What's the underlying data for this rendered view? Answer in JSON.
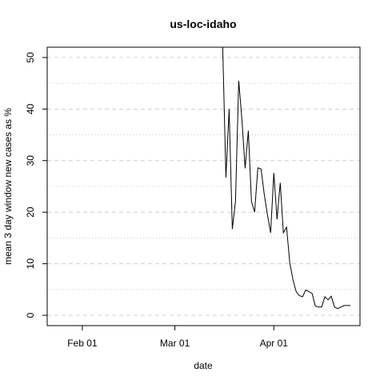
{
  "chart_data": {
    "type": "line",
    "title": "us-loc-idaho",
    "xlabel": "date",
    "ylabel": "mean  3  day window new cases as %",
    "x_ticks": [
      "Feb 01",
      "Mar 01",
      "Apr 01"
    ],
    "y_ticks": [
      0,
      10,
      20,
      30,
      40,
      50
    ],
    "xlim": [
      "2020-01-21",
      "2020-04-28"
    ],
    "ylim": [
      -2,
      52
    ],
    "grid": {
      "major_y": [
        0,
        10,
        20,
        30,
        40,
        50
      ],
      "minor_y": [
        5,
        15,
        25,
        35,
        45
      ]
    },
    "series": [
      {
        "x": [
          "2020-03-16",
          "2020-03-17",
          "2020-03-18",
          "2020-03-19",
          "2020-03-20",
          "2020-03-21",
          "2020-03-22",
          "2020-03-23",
          "2020-03-24",
          "2020-03-25",
          "2020-03-26",
          "2020-03-27",
          "2020-03-28",
          "2020-03-29",
          "2020-03-30",
          "2020-03-31",
          "2020-04-01",
          "2020-04-02",
          "2020-04-03",
          "2020-04-04",
          "2020-04-05",
          "2020-04-06",
          "2020-04-07",
          "2020-04-08",
          "2020-04-09",
          "2020-04-10",
          "2020-04-11",
          "2020-04-12",
          "2020-04-13",
          "2020-04-14",
          "2020-04-15",
          "2020-04-16",
          "2020-04-17",
          "2020-04-18",
          "2020-04-19",
          "2020-04-20",
          "2020-04-21",
          "2020-04-22",
          "2020-04-23",
          "2020-04-24",
          "2020-04-25"
        ],
        "y": [
          52,
          26.7,
          40,
          16.7,
          22.2,
          45.5,
          38,
          28.5,
          35.8,
          22.1,
          20,
          28.6,
          28.4,
          23.5,
          19.5,
          16,
          27.6,
          18.6,
          25.7,
          16,
          17.1,
          10.2,
          6.9,
          4.6,
          3.8,
          3.6,
          4.9,
          4.6,
          4.2,
          1.8,
          1.6,
          1.6,
          3.6,
          3.0,
          3.7,
          1.6,
          1.3,
          1.6,
          1.9,
          1.9,
          1.9
        ]
      }
    ]
  }
}
